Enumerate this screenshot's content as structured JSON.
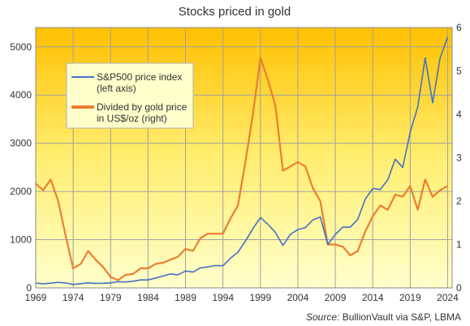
{
  "chart_data": {
    "type": "line",
    "title": "Stocks priced in gold",
    "source_label": "Source:",
    "source_text": "BullionVault via S&P, LBMA",
    "x_ticks": [
      "1969",
      "1974",
      "1979",
      "1984",
      "1989",
      "1994",
      "1999",
      "2004",
      "2009",
      "2014",
      "2019",
      "2024"
    ],
    "xlim": [
      1969,
      2024.6
    ],
    "y_left": {
      "ticks": [
        "0",
        "1000",
        "2000",
        "3000",
        "4000",
        "5000"
      ],
      "lim": [
        0,
        5400
      ]
    },
    "y_right": {
      "ticks": [
        "0",
        "1",
        "2",
        "3",
        "4",
        "5",
        "6"
      ],
      "lim": [
        0,
        6
      ]
    },
    "legend_position": "top-left",
    "colors": {
      "sp500": "#4472c4",
      "ratio": "#ed7d31",
      "bg_top": "#ffc000",
      "bg_bottom": "#ffffcc",
      "grid": "#a0a0a0"
    },
    "series": [
      {
        "name_line1": "S&P500 price index",
        "name_line2": "(left axis)",
        "axis": "left",
        "points": [
          [
            1969,
            100
          ],
          [
            1970,
            85
          ],
          [
            1971,
            98
          ],
          [
            1972,
            115
          ],
          [
            1973,
            102
          ],
          [
            1974,
            70
          ],
          [
            1975,
            88
          ],
          [
            1976,
            104
          ],
          [
            1977,
            95
          ],
          [
            1978,
            96
          ],
          [
            1979,
            105
          ],
          [
            1980,
            130
          ],
          [
            1981,
            122
          ],
          [
            1982,
            138
          ],
          [
            1983,
            165
          ],
          [
            1984,
            165
          ],
          [
            1985,
            205
          ],
          [
            1986,
            245
          ],
          [
            1987,
            290
          ],
          [
            1988,
            270
          ],
          [
            1989,
            350
          ],
          [
            1990,
            330
          ],
          [
            1991,
            415
          ],
          [
            1992,
            435
          ],
          [
            1993,
            465
          ],
          [
            1994,
            460
          ],
          [
            1995,
            615
          ],
          [
            1996,
            740
          ],
          [
            1997,
            970
          ],
          [
            1998,
            1230
          ],
          [
            1999,
            1460
          ],
          [
            2000,
            1320
          ],
          [
            2001,
            1150
          ],
          [
            2002,
            880
          ],
          [
            2003,
            1110
          ],
          [
            2004,
            1210
          ],
          [
            2005,
            1250
          ],
          [
            2006,
            1410
          ],
          [
            2007,
            1470
          ],
          [
            2008,
            900
          ],
          [
            2009,
            1110
          ],
          [
            2010,
            1260
          ],
          [
            2011,
            1260
          ],
          [
            2012,
            1420
          ],
          [
            2013,
            1840
          ],
          [
            2014,
            2060
          ],
          [
            2015,
            2040
          ],
          [
            2016,
            2240
          ],
          [
            2017,
            2670
          ],
          [
            2018,
            2500
          ],
          [
            2019,
            3230
          ],
          [
            2020,
            3750
          ],
          [
            2021,
            4770
          ],
          [
            2022,
            3840
          ],
          [
            2023,
            4770
          ],
          [
            2024,
            5200
          ]
        ]
      },
      {
        "name_line1": "Divided by gold price",
        "name_line2": "in US$/oz (right)",
        "axis": "right",
        "points": [
          [
            1969,
            2.4
          ],
          [
            1970,
            2.25
          ],
          [
            1971,
            2.5
          ],
          [
            1972,
            2.0
          ],
          [
            1973,
            1.2
          ],
          [
            1974,
            0.45
          ],
          [
            1975,
            0.55
          ],
          [
            1976,
            0.85
          ],
          [
            1977,
            0.65
          ],
          [
            1978,
            0.48
          ],
          [
            1979,
            0.25
          ],
          [
            1980,
            0.18
          ],
          [
            1981,
            0.3
          ],
          [
            1982,
            0.32
          ],
          [
            1983,
            0.45
          ],
          [
            1984,
            0.45
          ],
          [
            1985,
            0.55
          ],
          [
            1986,
            0.58
          ],
          [
            1987,
            0.65
          ],
          [
            1988,
            0.72
          ],
          [
            1989,
            0.9
          ],
          [
            1990,
            0.85
          ],
          [
            1991,
            1.15
          ],
          [
            1992,
            1.25
          ],
          [
            1993,
            1.25
          ],
          [
            1994,
            1.25
          ],
          [
            1995,
            1.6
          ],
          [
            1996,
            1.9
          ],
          [
            1997,
            2.9
          ],
          [
            1998,
            4.0
          ],
          [
            1999,
            5.3
          ],
          [
            2000,
            4.8
          ],
          [
            2001,
            4.2
          ],
          [
            2002,
            2.7
          ],
          [
            2003,
            2.8
          ],
          [
            2004,
            2.9
          ],
          [
            2005,
            2.8
          ],
          [
            2006,
            2.3
          ],
          [
            2007,
            2.0
          ],
          [
            2008,
            1.0
          ],
          [
            2009,
            1.0
          ],
          [
            2010,
            0.95
          ],
          [
            2011,
            0.75
          ],
          [
            2012,
            0.85
          ],
          [
            2013,
            1.3
          ],
          [
            2014,
            1.65
          ],
          [
            2015,
            1.9
          ],
          [
            2016,
            1.8
          ],
          [
            2017,
            2.15
          ],
          [
            2018,
            2.1
          ],
          [
            2019,
            2.35
          ],
          [
            2020,
            1.8
          ],
          [
            2021,
            2.5
          ],
          [
            2022,
            2.1
          ],
          [
            2023,
            2.25
          ],
          [
            2024,
            2.35
          ]
        ]
      }
    ]
  }
}
